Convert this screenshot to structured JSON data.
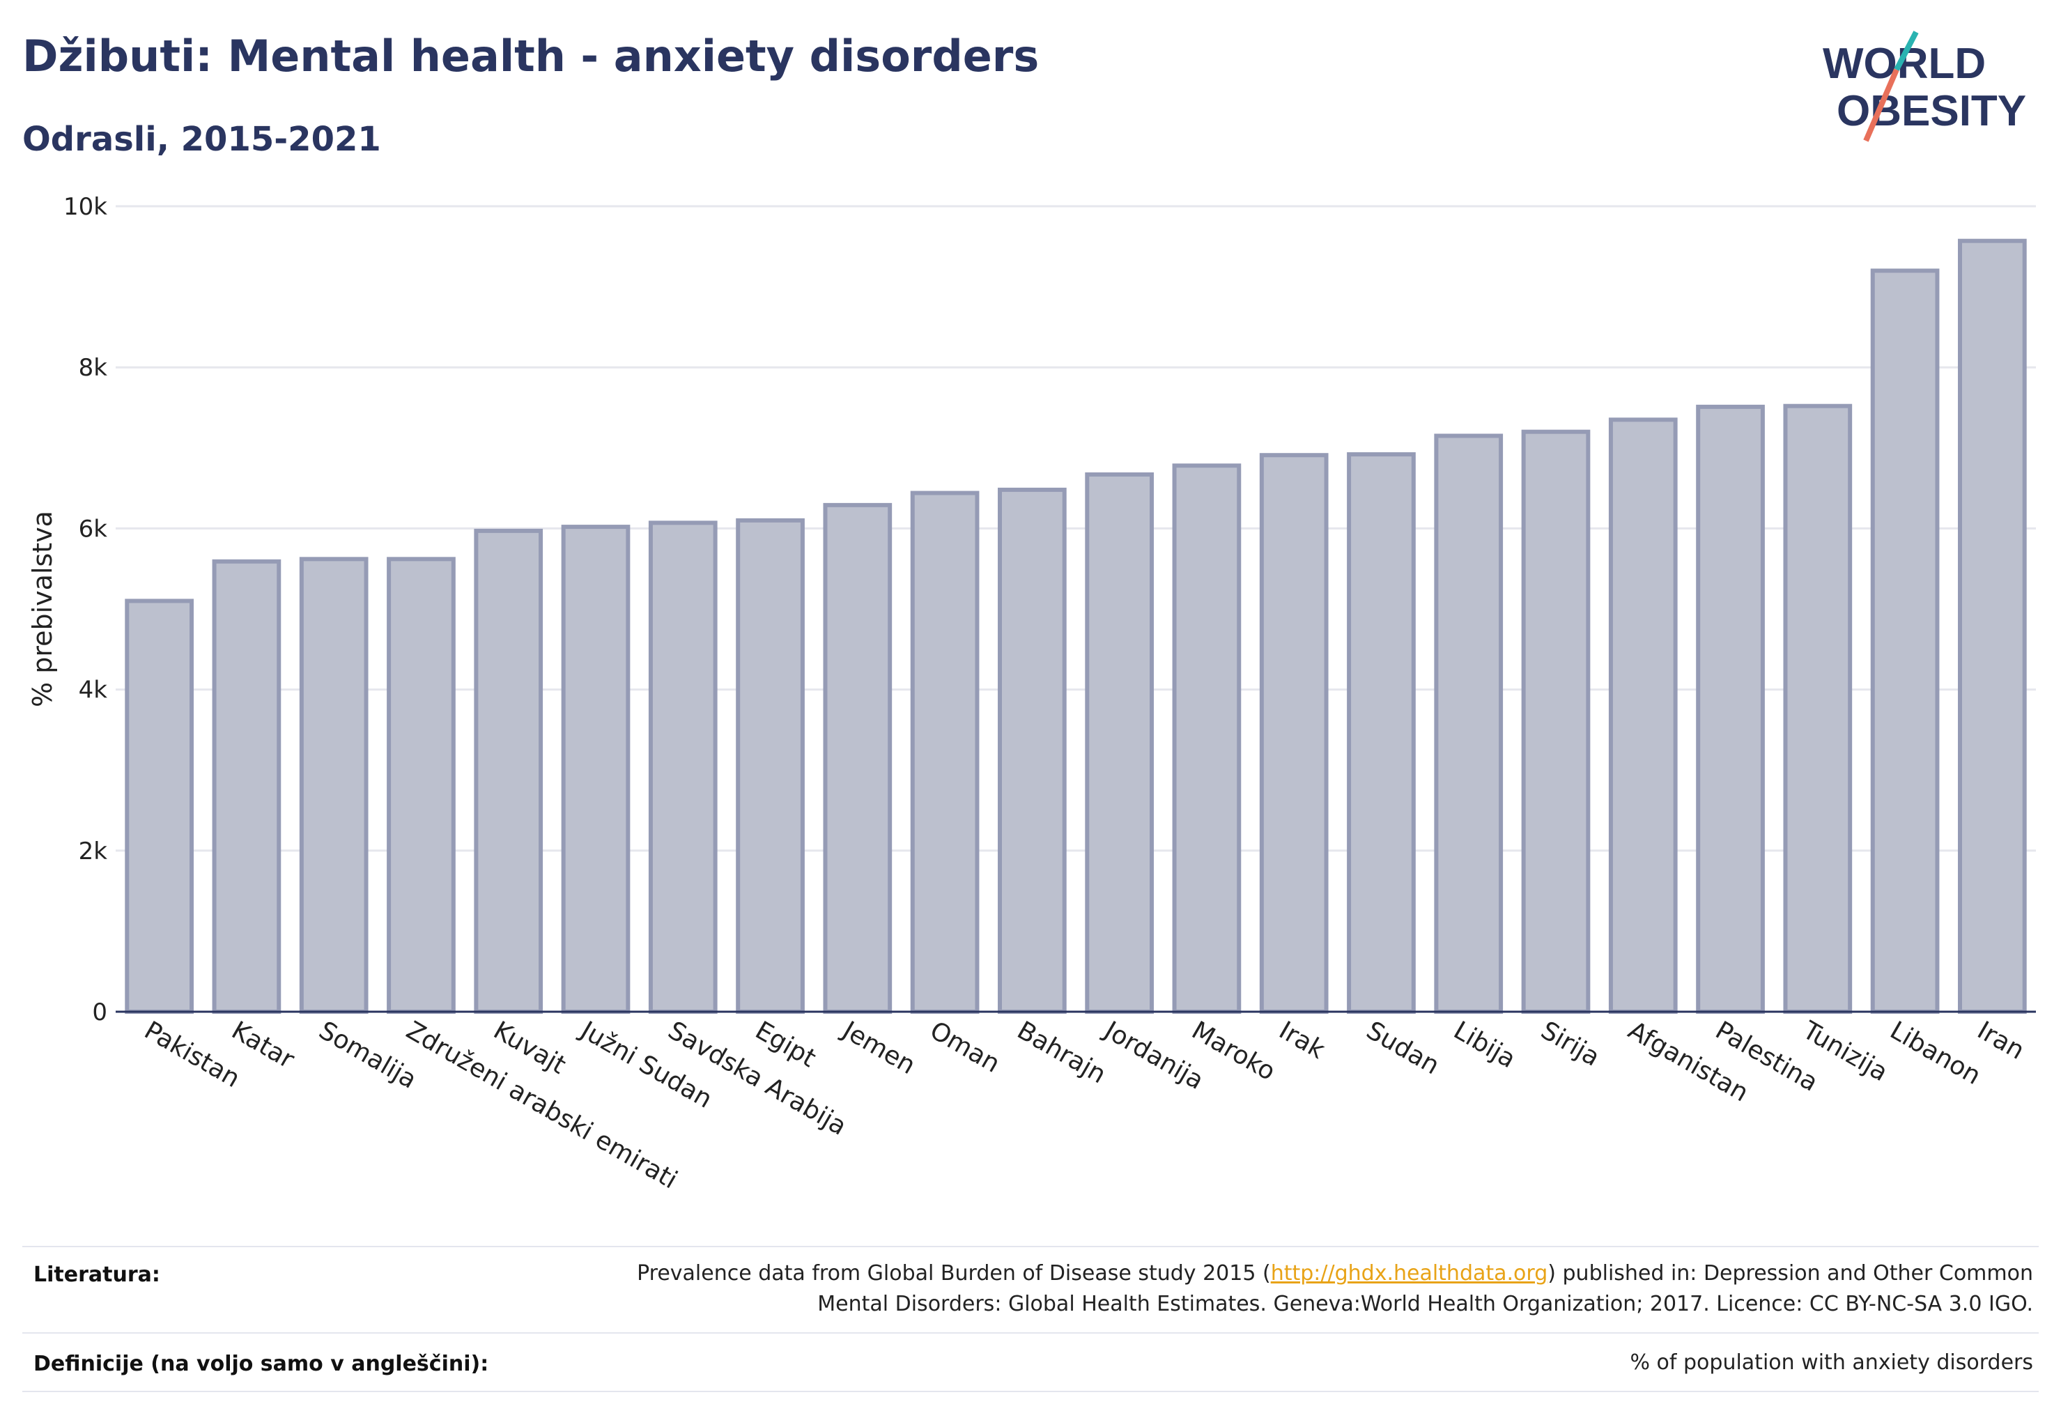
{
  "title": "Džibuti: Mental health - anxiety disorders",
  "subtitle": "Odrasli, 2015-2021",
  "logo": {
    "line1": "WORLD",
    "line2": "OBESITY"
  },
  "colors": {
    "bar_fill": "#bcc0ce",
    "bar_stroke": "#959bb5",
    "title": "#2a3560",
    "grid": "#e6e7ed",
    "link": "#e8a317"
  },
  "chart_data": {
    "type": "bar",
    "ylabel": "% prebivalstva",
    "xlabel": "",
    "ylim": [
      0,
      10000
    ],
    "yticks": [
      0,
      2000,
      4000,
      6000,
      8000,
      10000
    ],
    "ytick_labels": [
      "0",
      "2k",
      "4k",
      "6k",
      "8k",
      "10k"
    ],
    "grid": true,
    "categories": [
      "Pakistan",
      "Katar",
      "Somalija",
      "Združeni arabski emirati",
      "Kuvajt",
      "Južni Sudan",
      "Savdska Arabija",
      "Egipt",
      "Jemen",
      "Oman",
      "Bahrajn",
      "Jordanija",
      "Maroko",
      "Irak",
      "Sudan",
      "Libija",
      "Sirija",
      "Afganistan",
      "Palestina",
      "Tunizija",
      "Libanon",
      "Iran"
    ],
    "values": [
      5100,
      5590,
      5620,
      5620,
      5970,
      6020,
      6070,
      6100,
      6290,
      6440,
      6480,
      6670,
      6780,
      6910,
      6920,
      7150,
      7200,
      7350,
      7510,
      7520,
      9200,
      9570
    ]
  },
  "footer": {
    "literature_label": "Literatura:",
    "literature_pre": "Prevalence data from Global Burden of Disease study 2015 (",
    "literature_link": "http://ghdx.healthdata.org",
    "literature_post": ") published in: Depression and Other Common",
    "literature_line2": "Mental Disorders: Global Health Estimates. Geneva:World Health Organization; 2017. Licence: CC BY-NC-SA 3.0 IGO.",
    "definitions_label": "Definicije (na voljo samo v angleščini):",
    "definitions_text": "% of population with anxiety disorders"
  }
}
